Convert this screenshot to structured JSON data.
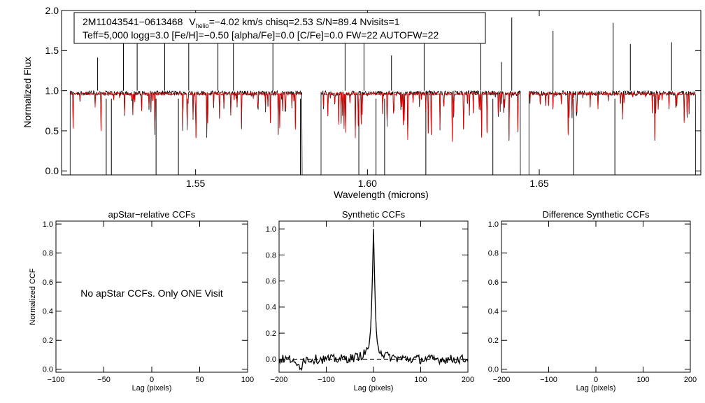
{
  "colors": {
    "observed": "#000000",
    "model": "#dd0000",
    "zero_line": "#000000"
  },
  "header": {
    "line1_star": "2M11043541−0613468",
    "line1_v": "V",
    "line1_v_sub": "helio",
    "line1_rest": "=−4.02 km/s  chisq=2.53  S/N=89.4  Nvisits=1",
    "line2": "Teff=5,000 logg=3.0 [Fe/H]=−0.50 [alpha/Fe]=0.0 [C/Fe]=0.0 FW=22 AUTOFW=22"
  },
  "chart_data": [
    {
      "type": "line",
      "title": "",
      "xlabel": "Wavelength (microns)",
      "ylabel": "Normalized Flux",
      "xlim": [
        1.511,
        1.697
      ],
      "ylim": [
        -0.05,
        2.0
      ],
      "xticks": [
        1.55,
        1.6,
        1.65
      ],
      "xtick_labels": [
        "1.55",
        "1.60",
        "1.65"
      ],
      "yticks": [
        0.0,
        0.5,
        1.0,
        1.5,
        2.0
      ],
      "ytick_labels": [
        "0.0",
        "0.5",
        "1.0",
        "1.5",
        "2.0"
      ],
      "chips": [
        [
          1.5135,
          1.581
        ],
        [
          1.5865,
          1.6445
        ],
        [
          1.647,
          1.6955
        ]
      ],
      "series": [
        {
          "name": "observed spectrum",
          "color": "black",
          "continuum": 0.97
        },
        {
          "name": "synthetic model",
          "color": "red",
          "continuum": 0.96
        }
      ],
      "emission_spikes": [
        1.5215,
        1.529,
        1.533,
        1.541,
        1.548,
        1.5565,
        1.561,
        1.5725,
        1.5935,
        1.599,
        1.607,
        1.6165,
        1.633,
        1.639,
        1.642,
        1.654,
        1.6715,
        1.6765,
        1.6885
      ]
    },
    {
      "type": "line",
      "title": "apStar−relative CCFs",
      "xlabel": "Lag (pixels)",
      "ylabel": "Normalized CCF",
      "xlim": [
        -100,
        100
      ],
      "ylim": [
        -0.02,
        1.02
      ],
      "xticks": [
        -100,
        -50,
        0,
        50,
        100
      ],
      "xtick_labels": [
        "−100",
        "−50",
        "0",
        "50",
        "100"
      ],
      "yticks": [
        0.0,
        0.2,
        0.4,
        0.6,
        0.8,
        1.0
      ],
      "ytick_labels": [
        "0.0",
        "0.2",
        "0.4",
        "0.6",
        "0.8",
        "1.0"
      ],
      "annotation": "No apStar CCFs.  Only ONE Visit",
      "series": []
    },
    {
      "type": "line",
      "title": "Synthetic CCFs",
      "xlabel": "Lag (pixels)",
      "ylabel": "",
      "xlim": [
        -200,
        200
      ],
      "ylim": [
        -0.1,
        1.06
      ],
      "xticks": [
        -200,
        -100,
        0,
        100,
        200
      ],
      "xtick_labels": [
        "−200",
        "−100",
        "0",
        "100",
        "200"
      ],
      "yticks": [
        0.0,
        0.2,
        0.4,
        0.6,
        0.8,
        1.0
      ],
      "ytick_labels": [
        "0.0",
        "0.2",
        "0.4",
        "0.6",
        "0.8",
        "1.0"
      ],
      "reference_line_y": 0.0,
      "series": [
        {
          "name": "synthetic CCF",
          "peak_lag": 0,
          "peak_value": 1.0
        }
      ]
    },
    {
      "type": "line",
      "title": "Difference Synthetic CCFs",
      "xlabel": "Lag (pixels)",
      "ylabel": "",
      "xlim": [
        -200,
        200
      ],
      "ylim": [
        -0.02,
        1.02
      ],
      "xticks": [
        -200,
        -100,
        0,
        100,
        200
      ],
      "xtick_labels": [
        "−200",
        "−100",
        "0",
        "100",
        "200"
      ],
      "yticks": [
        0.0,
        0.2,
        0.4,
        0.6,
        0.8,
        1.0
      ],
      "ytick_labels": [
        "0.0",
        "0.2",
        "0.4",
        "0.6",
        "0.8",
        "1.0"
      ],
      "series": []
    }
  ]
}
